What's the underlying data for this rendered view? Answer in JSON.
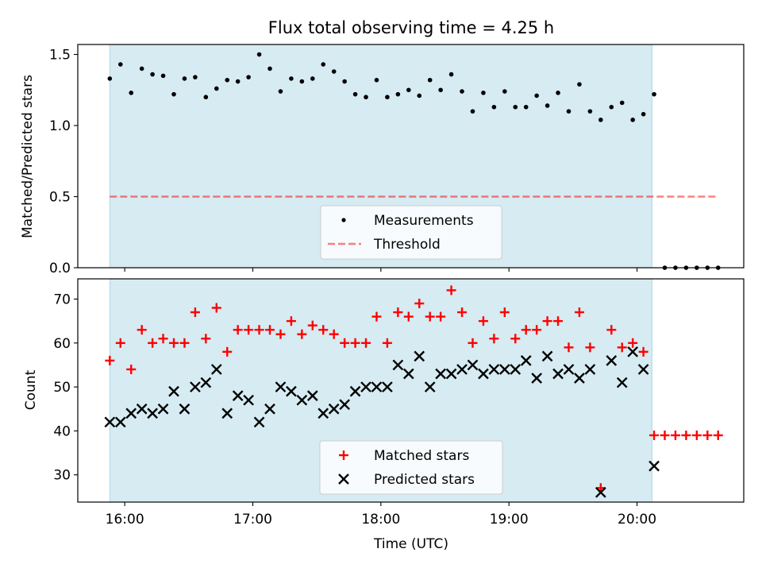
{
  "title": "Flux total observing time = 4.25 h",
  "colors": {
    "shade": "#add8e6",
    "measurement": "#000000",
    "threshold": "#ff0000",
    "matched": "#ff0000",
    "predicted": "#000000"
  },
  "chart_data": [
    {
      "type": "scatter",
      "ylabel": "Matched/Predicted stars",
      "xlim": [
        "15:38",
        "20:50"
      ],
      "ylim": [
        0,
        1.57
      ],
      "yticks": [
        "0.0",
        "0.5",
        "1.0",
        "1.5"
      ],
      "observing_window": [
        "15:53",
        "20:07"
      ],
      "legend": {
        "placement": "lower-center",
        "entries": [
          "Measurements",
          "Threshold"
        ]
      },
      "threshold": {
        "name": "Threshold",
        "value": 0.5,
        "x_range": [
          "15:53",
          "20:37"
        ],
        "style": "dashed"
      },
      "series": [
        {
          "name": "Measurements",
          "marker": "dot",
          "points": [
            [
              "15:53",
              1.33
            ],
            [
              "15:58",
              1.43
            ],
            [
              "16:03",
              1.23
            ],
            [
              "16:08",
              1.4
            ],
            [
              "16:13",
              1.36
            ],
            [
              "16:18",
              1.35
            ],
            [
              "16:23",
              1.22
            ],
            [
              "16:28",
              1.33
            ],
            [
              "16:33",
              1.34
            ],
            [
              "16:38",
              1.2
            ],
            [
              "16:43",
              1.26
            ],
            [
              "16:48",
              1.32
            ],
            [
              "16:53",
              1.31
            ],
            [
              "16:58",
              1.34
            ],
            [
              "17:03",
              1.5
            ],
            [
              "17:08",
              1.4
            ],
            [
              "17:13",
              1.24
            ],
            [
              "17:18",
              1.33
            ],
            [
              "17:23",
              1.31
            ],
            [
              "17:28",
              1.33
            ],
            [
              "17:33",
              1.43
            ],
            [
              "17:38",
              1.38
            ],
            [
              "17:43",
              1.31
            ],
            [
              "17:48",
              1.22
            ],
            [
              "17:53",
              1.2
            ],
            [
              "17:58",
              1.32
            ],
            [
              "18:03",
              1.2
            ],
            [
              "18:08",
              1.22
            ],
            [
              "18:13",
              1.25
            ],
            [
              "18:18",
              1.21
            ],
            [
              "18:23",
              1.32
            ],
            [
              "18:28",
              1.25
            ],
            [
              "18:33",
              1.36
            ],
            [
              "18:38",
              1.24
            ],
            [
              "18:43",
              1.1
            ],
            [
              "18:48",
              1.23
            ],
            [
              "18:53",
              1.13
            ],
            [
              "18:58",
              1.24
            ],
            [
              "19:03",
              1.13
            ],
            [
              "19:08",
              1.13
            ],
            [
              "19:13",
              1.21
            ],
            [
              "19:18",
              1.14
            ],
            [
              "19:23",
              1.23
            ],
            [
              "19:28",
              1.1
            ],
            [
              "19:33",
              1.29
            ],
            [
              "19:38",
              1.1
            ],
            [
              "19:43",
              1.04
            ],
            [
              "19:48",
              1.13
            ],
            [
              "19:53",
              1.16
            ],
            [
              "19:58",
              1.04
            ],
            [
              "20:03",
              1.08
            ],
            [
              "20:08",
              1.22
            ],
            [
              "20:13",
              0.0
            ],
            [
              "20:18",
              0.0
            ],
            [
              "20:23",
              0.0
            ],
            [
              "20:28",
              0.0
            ],
            [
              "20:33",
              0.0
            ],
            [
              "20:38",
              0.0
            ]
          ]
        }
      ]
    },
    {
      "type": "scatter",
      "ylabel": "Count",
      "xlabel": "Time (UTC)",
      "xlim": [
        "15:38",
        "20:50"
      ],
      "ylim": [
        23.8,
        74.6
      ],
      "yticks": [
        "30",
        "40",
        "50",
        "60",
        "70"
      ],
      "xticks": [
        "16:00",
        "17:00",
        "18:00",
        "19:00",
        "20:00"
      ],
      "observing_window": [
        "15:53",
        "20:07"
      ],
      "legend": {
        "placement": "lower-center",
        "entries": [
          "Matched stars",
          "Predicted stars"
        ]
      },
      "series": [
        {
          "name": "Matched stars",
          "marker": "plus",
          "points": [
            [
              "15:53",
              56
            ],
            [
              "15:58",
              60
            ],
            [
              "16:03",
              54
            ],
            [
              "16:08",
              63
            ],
            [
              "16:13",
              60
            ],
            [
              "16:18",
              61
            ],
            [
              "16:23",
              60
            ],
            [
              "16:28",
              60
            ],
            [
              "16:33",
              67
            ],
            [
              "16:38",
              61
            ],
            [
              "16:43",
              68
            ],
            [
              "16:48",
              58
            ],
            [
              "16:53",
              63
            ],
            [
              "16:58",
              63
            ],
            [
              "17:03",
              63
            ],
            [
              "17:08",
              63
            ],
            [
              "17:13",
              62
            ],
            [
              "17:18",
              65
            ],
            [
              "17:23",
              62
            ],
            [
              "17:28",
              64
            ],
            [
              "17:33",
              63
            ],
            [
              "17:38",
              62
            ],
            [
              "17:43",
              60
            ],
            [
              "17:48",
              60
            ],
            [
              "17:53",
              60
            ],
            [
              "17:58",
              66
            ],
            [
              "18:03",
              60
            ],
            [
              "18:08",
              67
            ],
            [
              "18:13",
              66
            ],
            [
              "18:18",
              69
            ],
            [
              "18:23",
              66
            ],
            [
              "18:28",
              66
            ],
            [
              "18:33",
              72
            ],
            [
              "18:38",
              67
            ],
            [
              "18:43",
              60
            ],
            [
              "18:48",
              65
            ],
            [
              "18:53",
              61
            ],
            [
              "18:58",
              67
            ],
            [
              "19:03",
              61
            ],
            [
              "19:08",
              63
            ],
            [
              "19:13",
              63
            ],
            [
              "19:18",
              65
            ],
            [
              "19:23",
              65
            ],
            [
              "19:28",
              59
            ],
            [
              "19:33",
              67
            ],
            [
              "19:38",
              59
            ],
            [
              "19:43",
              27
            ],
            [
              "19:48",
              63
            ],
            [
              "19:53",
              59
            ],
            [
              "19:58",
              60
            ],
            [
              "20:03",
              58
            ],
            [
              "20:08",
              39
            ],
            [
              "20:13",
              39
            ],
            [
              "20:18",
              39
            ],
            [
              "20:23",
              39
            ],
            [
              "20:28",
              39
            ],
            [
              "20:33",
              39
            ],
            [
              "20:38",
              39
            ]
          ]
        },
        {
          "name": "Predicted stars",
          "marker": "x",
          "points": [
            [
              "15:53",
              42
            ],
            [
              "15:58",
              42
            ],
            [
              "16:03",
              44
            ],
            [
              "16:08",
              45
            ],
            [
              "16:13",
              44
            ],
            [
              "16:18",
              45
            ],
            [
              "16:23",
              49
            ],
            [
              "16:28",
              45
            ],
            [
              "16:33",
              50
            ],
            [
              "16:38",
              51
            ],
            [
              "16:43",
              54
            ],
            [
              "16:48",
              44
            ],
            [
              "16:53",
              48
            ],
            [
              "16:58",
              47
            ],
            [
              "17:03",
              42
            ],
            [
              "17:08",
              45
            ],
            [
              "17:13",
              50
            ],
            [
              "17:18",
              49
            ],
            [
              "17:23",
              47
            ],
            [
              "17:28",
              48
            ],
            [
              "17:33",
              44
            ],
            [
              "17:38",
              45
            ],
            [
              "17:43",
              46
            ],
            [
              "17:48",
              49
            ],
            [
              "17:53",
              50
            ],
            [
              "17:58",
              50
            ],
            [
              "18:03",
              50
            ],
            [
              "18:08",
              55
            ],
            [
              "18:13",
              53
            ],
            [
              "18:18",
              57
            ],
            [
              "18:23",
              50
            ],
            [
              "18:28",
              53
            ],
            [
              "18:33",
              53
            ],
            [
              "18:38",
              54
            ],
            [
              "18:43",
              55
            ],
            [
              "18:48",
              53
            ],
            [
              "18:53",
              54
            ],
            [
              "18:58",
              54
            ],
            [
              "19:03",
              54
            ],
            [
              "19:08",
              56
            ],
            [
              "19:13",
              52
            ],
            [
              "19:18",
              57
            ],
            [
              "19:23",
              53
            ],
            [
              "19:28",
              54
            ],
            [
              "19:33",
              52
            ],
            [
              "19:38",
              54
            ],
            [
              "19:43",
              26
            ],
            [
              "19:48",
              56
            ],
            [
              "19:53",
              51
            ],
            [
              "19:58",
              58
            ],
            [
              "20:03",
              54
            ],
            [
              "20:08",
              32
            ]
          ]
        }
      ]
    }
  ]
}
